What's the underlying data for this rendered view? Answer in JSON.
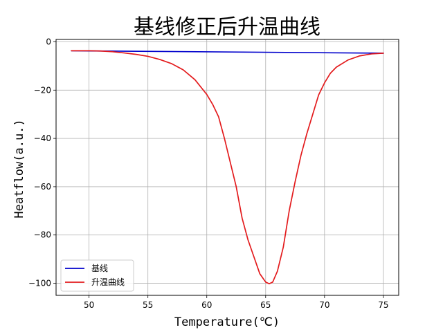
{
  "chart_data": {
    "type": "line",
    "title": "基线修正后升温曲线",
    "xlabel": "Temperature(℃)",
    "ylabel": "Heatflow(a.u.)",
    "xlim": [
      47.2,
      76.3
    ],
    "ylim": [
      -105,
      1
    ],
    "xticks": [
      50,
      55,
      60,
      65,
      70,
      75
    ],
    "yticks": [
      0,
      -20,
      -40,
      -60,
      -80,
      -100
    ],
    "grid": true,
    "legend_position": "lower-left",
    "series": [
      {
        "name": "基线",
        "color": "#0000cc",
        "x": [
          48.5,
          75.0
        ],
        "y": [
          -3.7,
          -4.7
        ]
      },
      {
        "name": "升温曲线",
        "color": "#e31a1c",
        "x": [
          48.5,
          50.0,
          51.0,
          52.0,
          53.0,
          54.0,
          55.0,
          56.0,
          57.0,
          58.0,
          59.0,
          60.0,
          60.5,
          61.0,
          61.5,
          62.0,
          62.5,
          63.0,
          63.5,
          64.0,
          64.5,
          65.0,
          65.3,
          65.6,
          66.0,
          66.5,
          67.0,
          67.5,
          68.0,
          68.5,
          69.0,
          69.5,
          70.0,
          70.5,
          71.0,
          72.0,
          73.0,
          74.0,
          75.0
        ],
        "y": [
          -3.7,
          -3.7,
          -3.8,
          -4.1,
          -4.6,
          -5.2,
          -6.0,
          -7.3,
          -9.0,
          -11.6,
          -15.7,
          -21.8,
          -25.9,
          -31.0,
          -40.0,
          -50.0,
          -60.0,
          -73.0,
          -82.0,
          -89.0,
          -96.0,
          -99.5,
          -100.2,
          -99.5,
          -95.0,
          -85.0,
          -70.0,
          -58.0,
          -47.0,
          -38.0,
          -30.0,
          -22.0,
          -17.0,
          -13.0,
          -10.5,
          -7.5,
          -5.8,
          -5.0,
          -4.7
        ]
      }
    ]
  }
}
